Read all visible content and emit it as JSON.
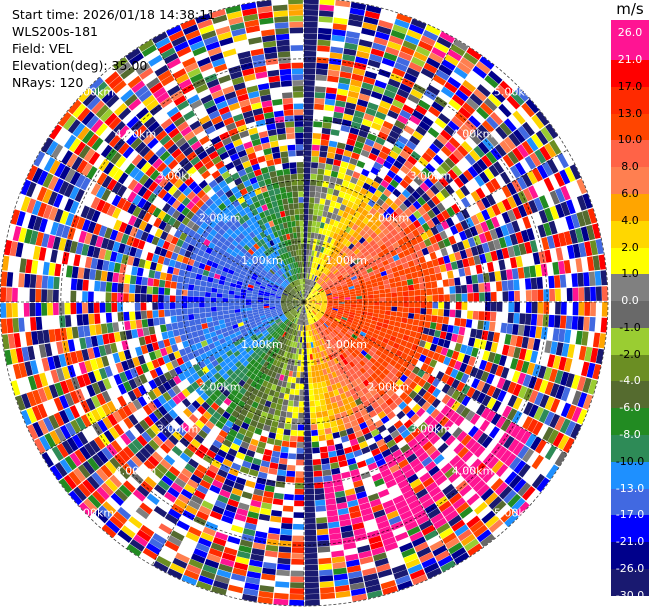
{
  "info": {
    "start_time": "Start time: 2026/01/18 14:38:11",
    "instrument": "WLS200s-181",
    "field": "Field: VEL",
    "elevation": "Elevation(deg): 35.00",
    "nrays": "NRays: 120"
  },
  "colorbar": {
    "unit": "m/s",
    "labels": [
      "26.0",
      "21.0",
      "17.0",
      "13.0",
      "10.0",
      "8.0",
      "6.0",
      "4.0",
      "2.0",
      "1.0",
      "0.0",
      "-1.0",
      "-2.0",
      "-4.0",
      "-6.0",
      "-8.0",
      "-10.0",
      "-13.0",
      "-17.0",
      "-21.0",
      "-26.0",
      "-30.0"
    ],
    "colors": [
      "#ff1493",
      "#ff0000",
      "#ff2a00",
      "#ff4500",
      "#ff6347",
      "#ff7f50",
      "#ffa500",
      "#ffd700",
      "#ffff00",
      "#808080",
      "#696969",
      "#9acd32",
      "#6b8e23",
      "#556b2f",
      "#228b22",
      "#2e8b57",
      "#1e90ff",
      "#4169e1",
      "#0000ff",
      "#00008b",
      "#191970"
    ]
  },
  "chart_data": {
    "type": "heatmap",
    "projection": "polar (PPI)",
    "field": "VEL",
    "units": "m/s",
    "nrays": 120,
    "range_ring_labels_km": [
      "1.00km",
      "2.00km",
      "3.00km",
      "4.00km",
      "5.00km"
    ],
    "range_rings_km": [
      1,
      2,
      3,
      4,
      5
    ],
    "max_range_km": 5.0,
    "value_range": [
      -30.0,
      26.0
    ],
    "pattern": {
      "inner_radius_km": 2.2,
      "noisy_outer": true,
      "approach_azimuth_deg": 270,
      "recede_azimuth_deg": 100,
      "blocked_ray_azimuths_deg": [
        0,
        177
      ]
    }
  }
}
